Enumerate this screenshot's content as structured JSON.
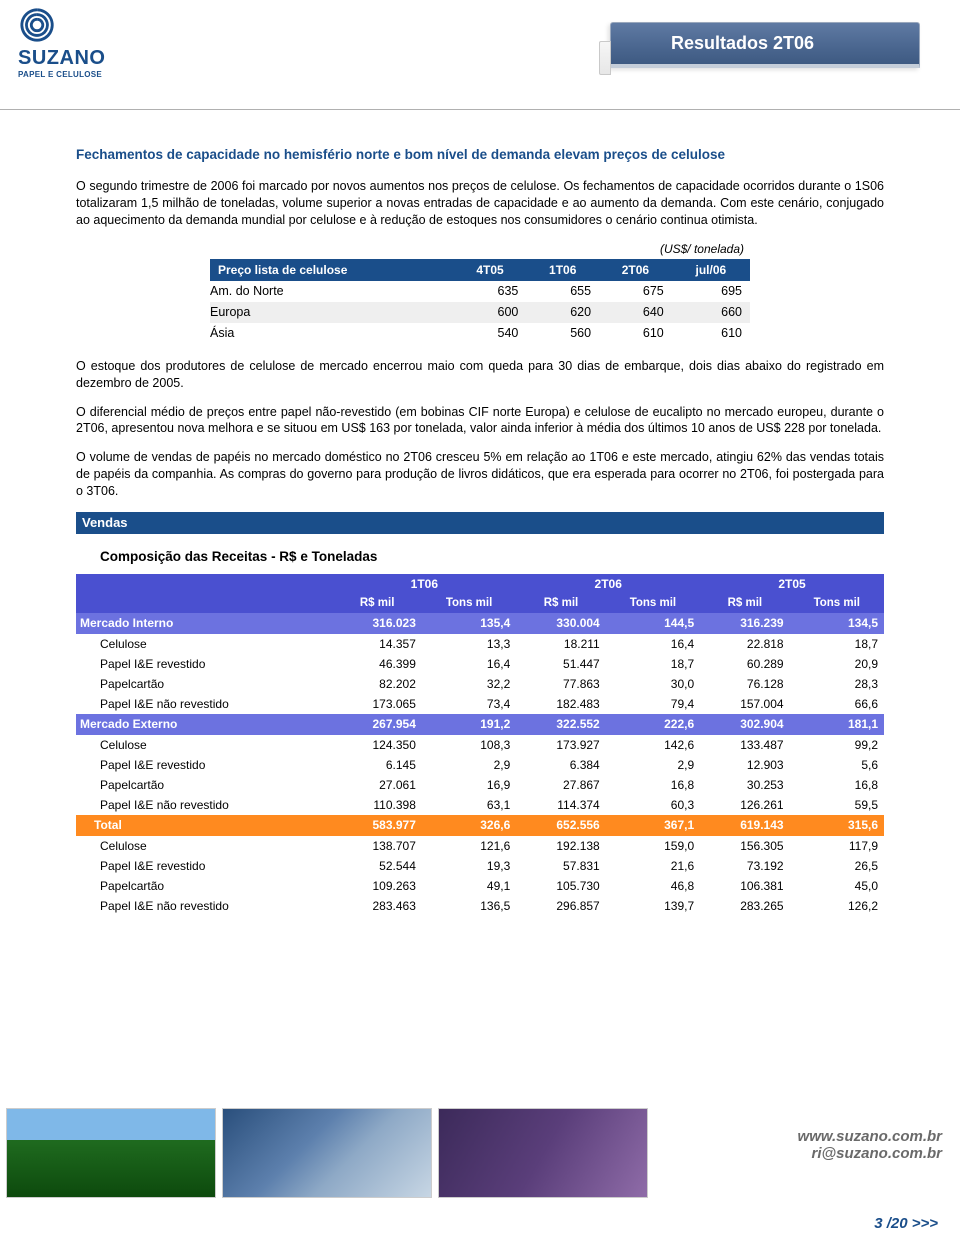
{
  "header": {
    "brand": "SUZANO",
    "brand_sub": "PAPEL E CELULOSE",
    "title": "Resultados 2T06"
  },
  "subhead": "Fechamentos de capacidade no hemisfério norte e bom nível de demanda elevam preços de celulose",
  "paragraphs": {
    "p1": "O segundo trimestre de 2006 foi marcado por novos aumentos nos preços de celulose. Os fechamentos de capacidade ocorridos durante o 1S06 totalizaram 1,5 milhão de toneladas, volume superior a novas entradas de capacidade e ao aumento da demanda. Com este cenário, conjugado ao aquecimento da demanda mundial por celulose e à redução de estoques nos consumidores o cenário continua otimista.",
    "unit": "(US$/ tonelada)",
    "p2": "O estoque dos produtores de celulose de mercado encerrou maio com queda para 30 dias de embarque, dois dias abaixo do registrado em dezembro de 2005.",
    "p3": "O diferencial médio de preços entre papel não-revestido (em bobinas CIF norte Europa) e celulose de eucalipto no mercado europeu, durante o 2T06, apresentou nova melhora e se situou em US$ 163 por tonelada, valor ainda inferior à média dos últimos 10 anos de US$ 228 por tonelada.",
    "p4": "O volume de vendas de papéis no mercado doméstico no 2T06 cresceu 5% em relação ao 1T06 e este mercado, atingiu 62% das vendas totais de papéis da companhia. As compras do governo para produção de livros didáticos, que era esperada para ocorrer no 2T06, foi postergada para o 3T06."
  },
  "price_table": {
    "header_label": "Preço lista de celulose",
    "columns": [
      "4T05",
      "1T06",
      "2T06",
      "jul/06"
    ],
    "rows": [
      {
        "label": "Am. do Norte",
        "vals": [
          "635",
          "655",
          "675",
          "695"
        ]
      },
      {
        "label": "Europa",
        "vals": [
          "600",
          "620",
          "640",
          "660"
        ]
      },
      {
        "label": "Ásia",
        "vals": [
          "540",
          "560",
          "610",
          "610"
        ]
      }
    ]
  },
  "section_bar": "Vendas",
  "comp_title": "Composição das Receitas - R$ e Toneladas",
  "comp_table": {
    "periods": [
      "1T06",
      "2T06",
      "2T05"
    ],
    "unit_cols": [
      "R$ mil",
      "Tons mil",
      "R$ mil",
      "Tons mil",
      "R$ mil",
      "Tons mil"
    ],
    "groups": [
      {
        "name": "Mercado Interno",
        "color": "#6c72e0",
        "totals": [
          "316.023",
          "135,4",
          "330.004",
          "144,5",
          "316.239",
          "134,5"
        ],
        "rows": [
          {
            "label": "Celulose",
            "vals": [
              "14.357",
              "13,3",
              "18.211",
              "16,4",
              "22.818",
              "18,7"
            ]
          },
          {
            "label": "Papel I&E revestido",
            "vals": [
              "46.399",
              "16,4",
              "51.447",
              "18,7",
              "60.289",
              "20,9"
            ]
          },
          {
            "label": "Papelcartão",
            "vals": [
              "82.202",
              "32,2",
              "77.863",
              "30,0",
              "76.128",
              "28,3"
            ]
          },
          {
            "label": "Papel I&E não revestido",
            "vals": [
              "173.065",
              "73,4",
              "182.483",
              "79,4",
              "157.004",
              "66,6"
            ]
          }
        ]
      },
      {
        "name": "Mercado Externo",
        "color": "#6c72e0",
        "totals": [
          "267.954",
          "191,2",
          "322.552",
          "222,6",
          "302.904",
          "181,1"
        ],
        "rows": [
          {
            "label": "Celulose",
            "vals": [
              "124.350",
              "108,3",
              "173.927",
              "142,6",
              "133.487",
              "99,2"
            ]
          },
          {
            "label": "Papel I&E revestido",
            "vals": [
              "6.145",
              "2,9",
              "6.384",
              "2,9",
              "12.903",
              "5,6"
            ]
          },
          {
            "label": "Papelcartão",
            "vals": [
              "27.061",
              "16,9",
              "27.867",
              "16,8",
              "30.253",
              "16,8"
            ]
          },
          {
            "label": "Papel I&E não revestido",
            "vals": [
              "110.398",
              "63,1",
              "114.374",
              "60,3",
              "126.261",
              "59,5"
            ]
          }
        ]
      },
      {
        "name": "Total",
        "color": "#ff8a1f",
        "is_total": true,
        "totals": [
          "583.977",
          "326,6",
          "652.556",
          "367,1",
          "619.143",
          "315,6"
        ],
        "rows": [
          {
            "label": "Celulose",
            "vals": [
              "138.707",
              "121,6",
              "192.138",
              "159,0",
              "156.305",
              "117,9"
            ]
          },
          {
            "label": "Papel I&E revestido",
            "vals": [
              "52.544",
              "19,3",
              "57.831",
              "21,6",
              "73.192",
              "26,5"
            ]
          },
          {
            "label": "Papelcartão",
            "vals": [
              "109.263",
              "49,1",
              "105.730",
              "46,8",
              "106.381",
              "45,0"
            ]
          },
          {
            "label": "Papel I&E não revestido",
            "vals": [
              "283.463",
              "136,5",
              "296.857",
              "139,7",
              "283.265",
              "126,2"
            ]
          }
        ]
      }
    ]
  },
  "footer": {
    "url1": "www.suzano.com.br",
    "url2": "ri@suzano.com.br",
    "page": "3 /20 >>>"
  },
  "colors": {
    "brand_blue": "#1a4e8a",
    "table_blue": "#4a50d0",
    "table_blue_light": "#6c72e0",
    "orange": "#ff8a1f"
  }
}
